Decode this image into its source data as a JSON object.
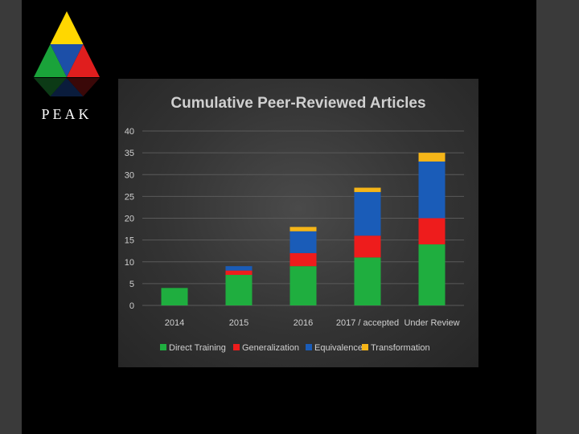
{
  "logo": {
    "text": "PEAK",
    "colors": {
      "yellow": "#ffd700",
      "green": "#1aa33a",
      "blue": "#1c4fa8",
      "red": "#e01e1e"
    }
  },
  "chart_data": {
    "type": "bar",
    "stacked": true,
    "title": "Cumulative Peer-Reviewed Articles",
    "categories": [
      "2014",
      "2015",
      "2016",
      "2017 / accepted",
      "Under Review"
    ],
    "series": [
      {
        "name": "Direct Training",
        "color": "#1fae3f",
        "values": [
          4,
          7,
          9,
          11,
          14
        ]
      },
      {
        "name": "Generalization",
        "color": "#ee1c1c",
        "values": [
          0,
          1,
          3,
          5,
          6
        ]
      },
      {
        "name": "Equivalence",
        "color": "#1a5cb8",
        "values": [
          0,
          1,
          5,
          10,
          13
        ]
      },
      {
        "name": "Transformation",
        "color": "#f5b518",
        "values": [
          0,
          0,
          1,
          1,
          2
        ]
      }
    ],
    "ylim": [
      0,
      40
    ],
    "yticks": [
      0,
      5,
      10,
      15,
      20,
      25,
      30,
      35,
      40
    ],
    "grid": true,
    "legend": "bottom"
  }
}
